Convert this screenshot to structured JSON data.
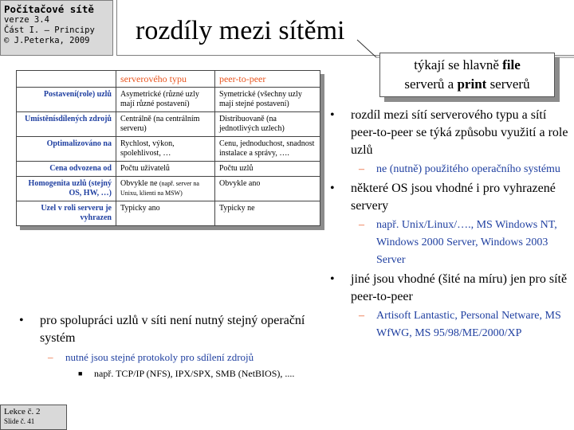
{
  "course": {
    "title": "Počítačové sítě",
    "version": "verze 3.4",
    "part": "Část I. – Principy",
    "author": "© J.Peterka, 2009"
  },
  "slide_title": "rozdíly mezi sítěmi",
  "callout": {
    "line1_pre": "týkají se hlavně ",
    "line1_bold": "file",
    "line2_pre": "serverů a ",
    "line2_bold": "print",
    "line2_post": " serverů"
  },
  "table": {
    "headers": [
      "",
      "serverového typu",
      "peer-to-peer"
    ],
    "rows": [
      {
        "label": "Postavení(role) uzlů",
        "server": "Asymetrické (různé uzly mají různé postavení)",
        "p2p": "Symetrické (všechny uzly mají stejné postavení)"
      },
      {
        "label": "Umístěnísdílených zdrojů",
        "server": "Centrálně (na centrálním serveru)",
        "p2p": "Distribuovaně (na jednotlivých uzlech)"
      },
      {
        "label": "Optimalizováno na",
        "server": "Rychlost, výkon, spolehlivost, …",
        "p2p": "Cenu, jednoduchost, snadnost instalace a správy, …."
      },
      {
        "label": "Cena odvozena od",
        "server": "Počtu uživatelů",
        "p2p": "Počtu uzlů"
      },
      {
        "label": "Homogenita uzlů (stejný OS, HW, …)",
        "server": "Obvykle ne",
        "server_small": "(např. server na Unixu, klienti na MSW)",
        "p2p": "Obvykle ano"
      },
      {
        "label": "Uzel v roli serveru je vyhrazen",
        "server": "Typicky ano",
        "p2p": "Typicky ne"
      }
    ]
  },
  "right_bullets": [
    {
      "text": "rozdíl mezi sítí serverového typu a sítí peer-to-peer se týká způsobu využití a role uzlů",
      "sub": "ne (nutně) použitého operačního systému"
    },
    {
      "text": "některé OS jsou vhodné i pro vyhrazené servery",
      "sub": "např. Unix/Linux/…., MS Windows NT, Windows 2000 Server, Windows 2003 Server"
    },
    {
      "text": "jiné jsou vhodné (šité na míru) jen pro sítě peer-to-peer",
      "sub": "Artisoft Lantastic, Personal Netware, MS WfWG, MS 95/98/ME/2000/XP"
    }
  ],
  "left_bullet": {
    "text": "pro spolupráci uzlů v síti není nutný stejný operační systém",
    "sub": "nutné jsou stejné protokoly pro sdílení zdrojů",
    "subsub": "např. TCP/IP (NFS), IPX/SPX, SMB (NetBIOS), ...."
  },
  "slide_info": {
    "lecture": "Lekce č. 2",
    "slide": "Slide č. 41"
  },
  "colors": {
    "header_orange": "#e8541e",
    "label_blue": "#1f3fa0",
    "panel_gray": "#d9d9d9"
  }
}
